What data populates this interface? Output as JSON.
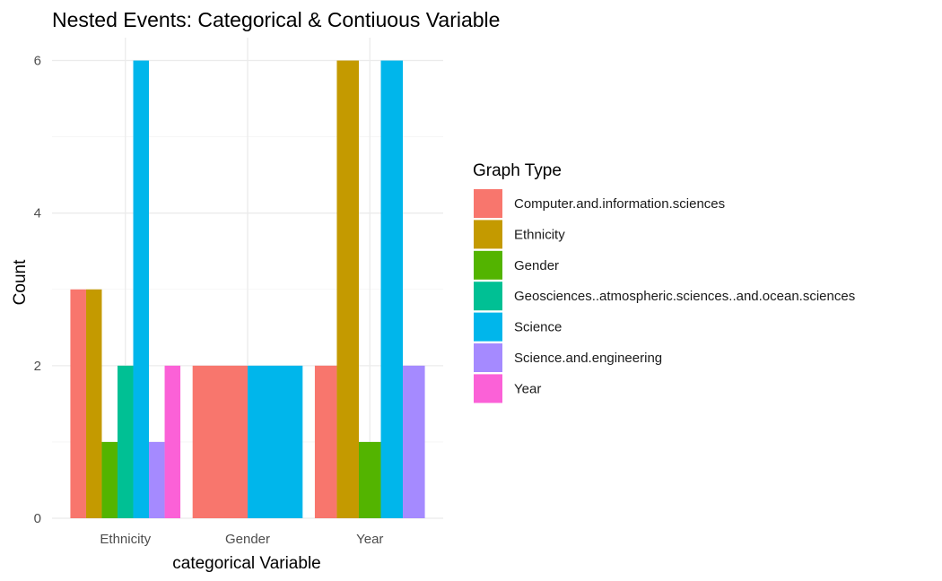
{
  "chart_data": {
    "type": "bar",
    "title": "Nested Events: Categorical & Contiuous Variable",
    "xlabel": "categorical Variable",
    "ylabel": "Count",
    "ylim": [
      0,
      6.3
    ],
    "yticks": [
      0,
      2,
      4,
      6
    ],
    "grid": true,
    "legend": {
      "title": "Graph Type",
      "position": "right"
    },
    "categories": [
      "Ethnicity",
      "Gender",
      "Year"
    ],
    "series": [
      {
        "name": "Computer.and.information.sciences",
        "color": "#F8766D"
      },
      {
        "name": "Ethnicity",
        "color": "#C49A00"
      },
      {
        "name": "Gender",
        "color": "#53B400"
      },
      {
        "name": "Geosciences..atmospheric.sciences..and.ocean.sciences",
        "color": "#00C094"
      },
      {
        "name": "Science",
        "color": "#00B6EB"
      },
      {
        "name": "Science.and.engineering",
        "color": "#A58AFF"
      },
      {
        "name": "Year",
        "color": "#FB61D7"
      }
    ],
    "bars": [
      {
        "category": "Ethnicity",
        "values": [
          {
            "series": "Computer.and.information.sciences",
            "value": 3
          },
          {
            "series": "Ethnicity",
            "value": 3
          },
          {
            "series": "Gender",
            "value": 1
          },
          {
            "series": "Geosciences..atmospheric.sciences..and.ocean.sciences",
            "value": 2
          },
          {
            "series": "Science",
            "value": 6
          },
          {
            "series": "Science.and.engineering",
            "value": 1
          },
          {
            "series": "Year",
            "value": 2
          }
        ]
      },
      {
        "category": "Gender",
        "values": [
          {
            "series": "Computer.and.information.sciences",
            "value": 2
          },
          {
            "series": "Science",
            "value": 2
          }
        ]
      },
      {
        "category": "Year",
        "values": [
          {
            "series": "Computer.and.information.sciences",
            "value": 2
          },
          {
            "series": "Ethnicity",
            "value": 6
          },
          {
            "series": "Gender",
            "value": 1
          },
          {
            "series": "Science",
            "value": 6
          },
          {
            "series": "Science.and.engineering",
            "value": 2
          }
        ]
      }
    ]
  }
}
